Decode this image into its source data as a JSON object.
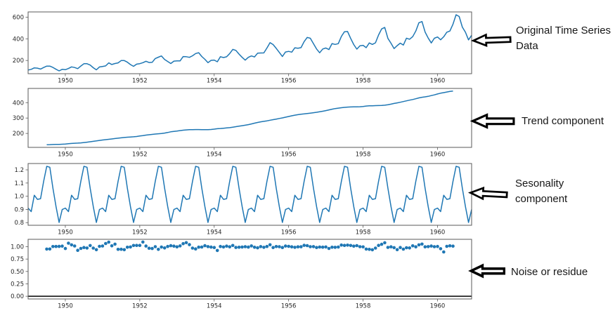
{
  "colors": {
    "line": "#1f77b4",
    "scatter": "#1f77b4",
    "zero_line": "#000000",
    "spine": "#5a5a5a",
    "tick_text": "#262626",
    "background": "#ffffff",
    "annotation_text": "#161616",
    "arrow_fill": "#ffffff",
    "arrow_outline": "#000000"
  },
  "x_axis": {
    "start_year": 1949,
    "interval": "monthly",
    "n_points": 144,
    "tick_labels": [
      "1950",
      "1952",
      "1954",
      "1956",
      "1958",
      "1960"
    ]
  },
  "chart_data": [
    {
      "type": "line",
      "name": "observed",
      "derivation": "original monthly series, Jan 1949 - Dec 1960",
      "y_tick_labels": [
        "200",
        "400",
        "600"
      ],
      "values": [
        112,
        118,
        132,
        129,
        121,
        135,
        148,
        148,
        136,
        119,
        104,
        118,
        115,
        126,
        141,
        135,
        125,
        149,
        170,
        170,
        158,
        133,
        114,
        140,
        145,
        150,
        178,
        163,
        172,
        178,
        199,
        199,
        184,
        162,
        146,
        166,
        171,
        180,
        193,
        181,
        183,
        218,
        230,
        242,
        209,
        191,
        172,
        194,
        196,
        196,
        236,
        235,
        229,
        243,
        264,
        272,
        237,
        211,
        180,
        201,
        204,
        188,
        235,
        227,
        234,
        264,
        302,
        293,
        259,
        229,
        203,
        229,
        242,
        233,
        267,
        269,
        270,
        315,
        364,
        347,
        312,
        274,
        237,
        278,
        284,
        277,
        317,
        313,
        318,
        374,
        413,
        405,
        355,
        306,
        271,
        306,
        315,
        301,
        356,
        348,
        355,
        422,
        465,
        467,
        404,
        347,
        305,
        336,
        340,
        318,
        362,
        348,
        363,
        435,
        491,
        505,
        404,
        359,
        310,
        337,
        360,
        342,
        406,
        396,
        420,
        472,
        548,
        559,
        463,
        407,
        362,
        405,
        417,
        391,
        419,
        461,
        472,
        535,
        622,
        606,
        508,
        461,
        390,
        432
      ]
    },
    {
      "type": "line",
      "name": "trend",
      "derivation": "centered 12-month moving average of observed (Jul 1949 - Jun 1960)",
      "y_tick_labels": [
        "200",
        "300",
        "400"
      ]
    },
    {
      "type": "line",
      "name": "seasonal",
      "derivation": "multiplicative seasonal component, 12-month pattern tiled over 1949-1960",
      "y_tick_labels": [
        "0.8",
        "0.9",
        "1.0",
        "1.1",
        "1.2"
      ],
      "monthly_indices": [
        0.9102,
        0.8836,
        1.0074,
        0.9759,
        0.9814,
        1.1128,
        1.2266,
        1.2199,
        1.0605,
        0.9218,
        0.8012,
        0.8988
      ]
    },
    {
      "type": "scatter",
      "name": "resid",
      "derivation": "residual = observed / (trend * seasonal), Jul 1949 - Jun 1960",
      "y_tick_labels": [
        "0.00",
        "0.25",
        "0.50",
        "0.75",
        "1.00"
      ],
      "zero_line": true
    }
  ],
  "annotations": [
    {
      "label": "Original Time Series Data"
    },
    {
      "label": "Trend component"
    },
    {
      "label": "Sesonality component"
    },
    {
      "label": "Noise or residue"
    }
  ]
}
